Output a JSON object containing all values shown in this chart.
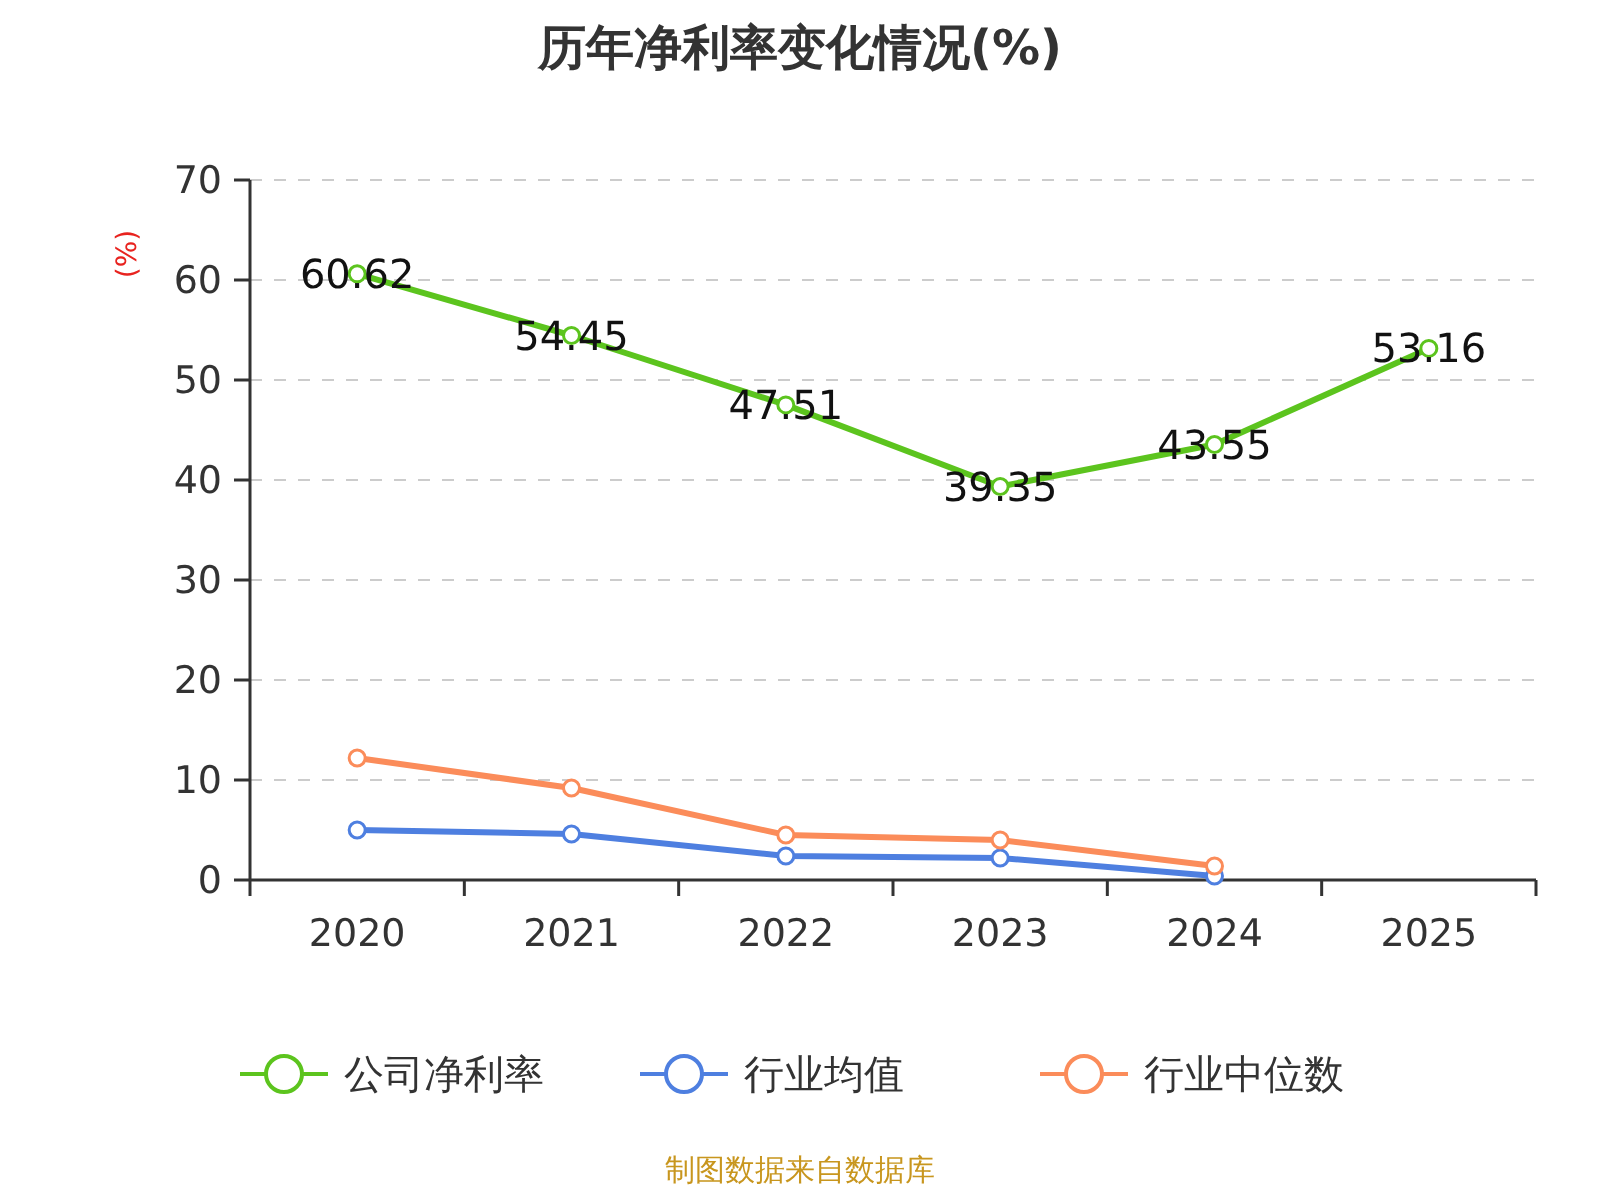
{
  "chart_data": {
    "type": "line",
    "title": "历年净利率变化情况(%)",
    "ylabel": "(%)",
    "categories": [
      "2020",
      "2021",
      "2022",
      "2023",
      "2024",
      "2025"
    ],
    "series": [
      {
        "name": "公司净利率",
        "color": "#5cc41e",
        "values": [
          60.62,
          54.45,
          47.51,
          39.35,
          43.55,
          53.16
        ],
        "value_labels": [
          "60.62",
          "54.45",
          "47.51",
          "39.35",
          "43.55",
          "53.16"
        ]
      },
      {
        "name": "行业均值",
        "color": "#4e7fe0",
        "values": [
          5.0,
          4.6,
          2.4,
          2.2,
          0.4,
          null
        ]
      },
      {
        "name": "行业中位数",
        "color": "#fb8c5a",
        "values": [
          12.2,
          9.2,
          4.5,
          4.0,
          1.4,
          null
        ]
      }
    ],
    "ylim": [
      0,
      70
    ],
    "yticks": [
      0,
      10,
      20,
      30,
      40,
      50,
      60,
      70
    ],
    "grid": "y",
    "legend": "bottom",
    "marker": "circle",
    "line_style": "solid",
    "annotations": [
      "制图数据来自数据库"
    ]
  }
}
